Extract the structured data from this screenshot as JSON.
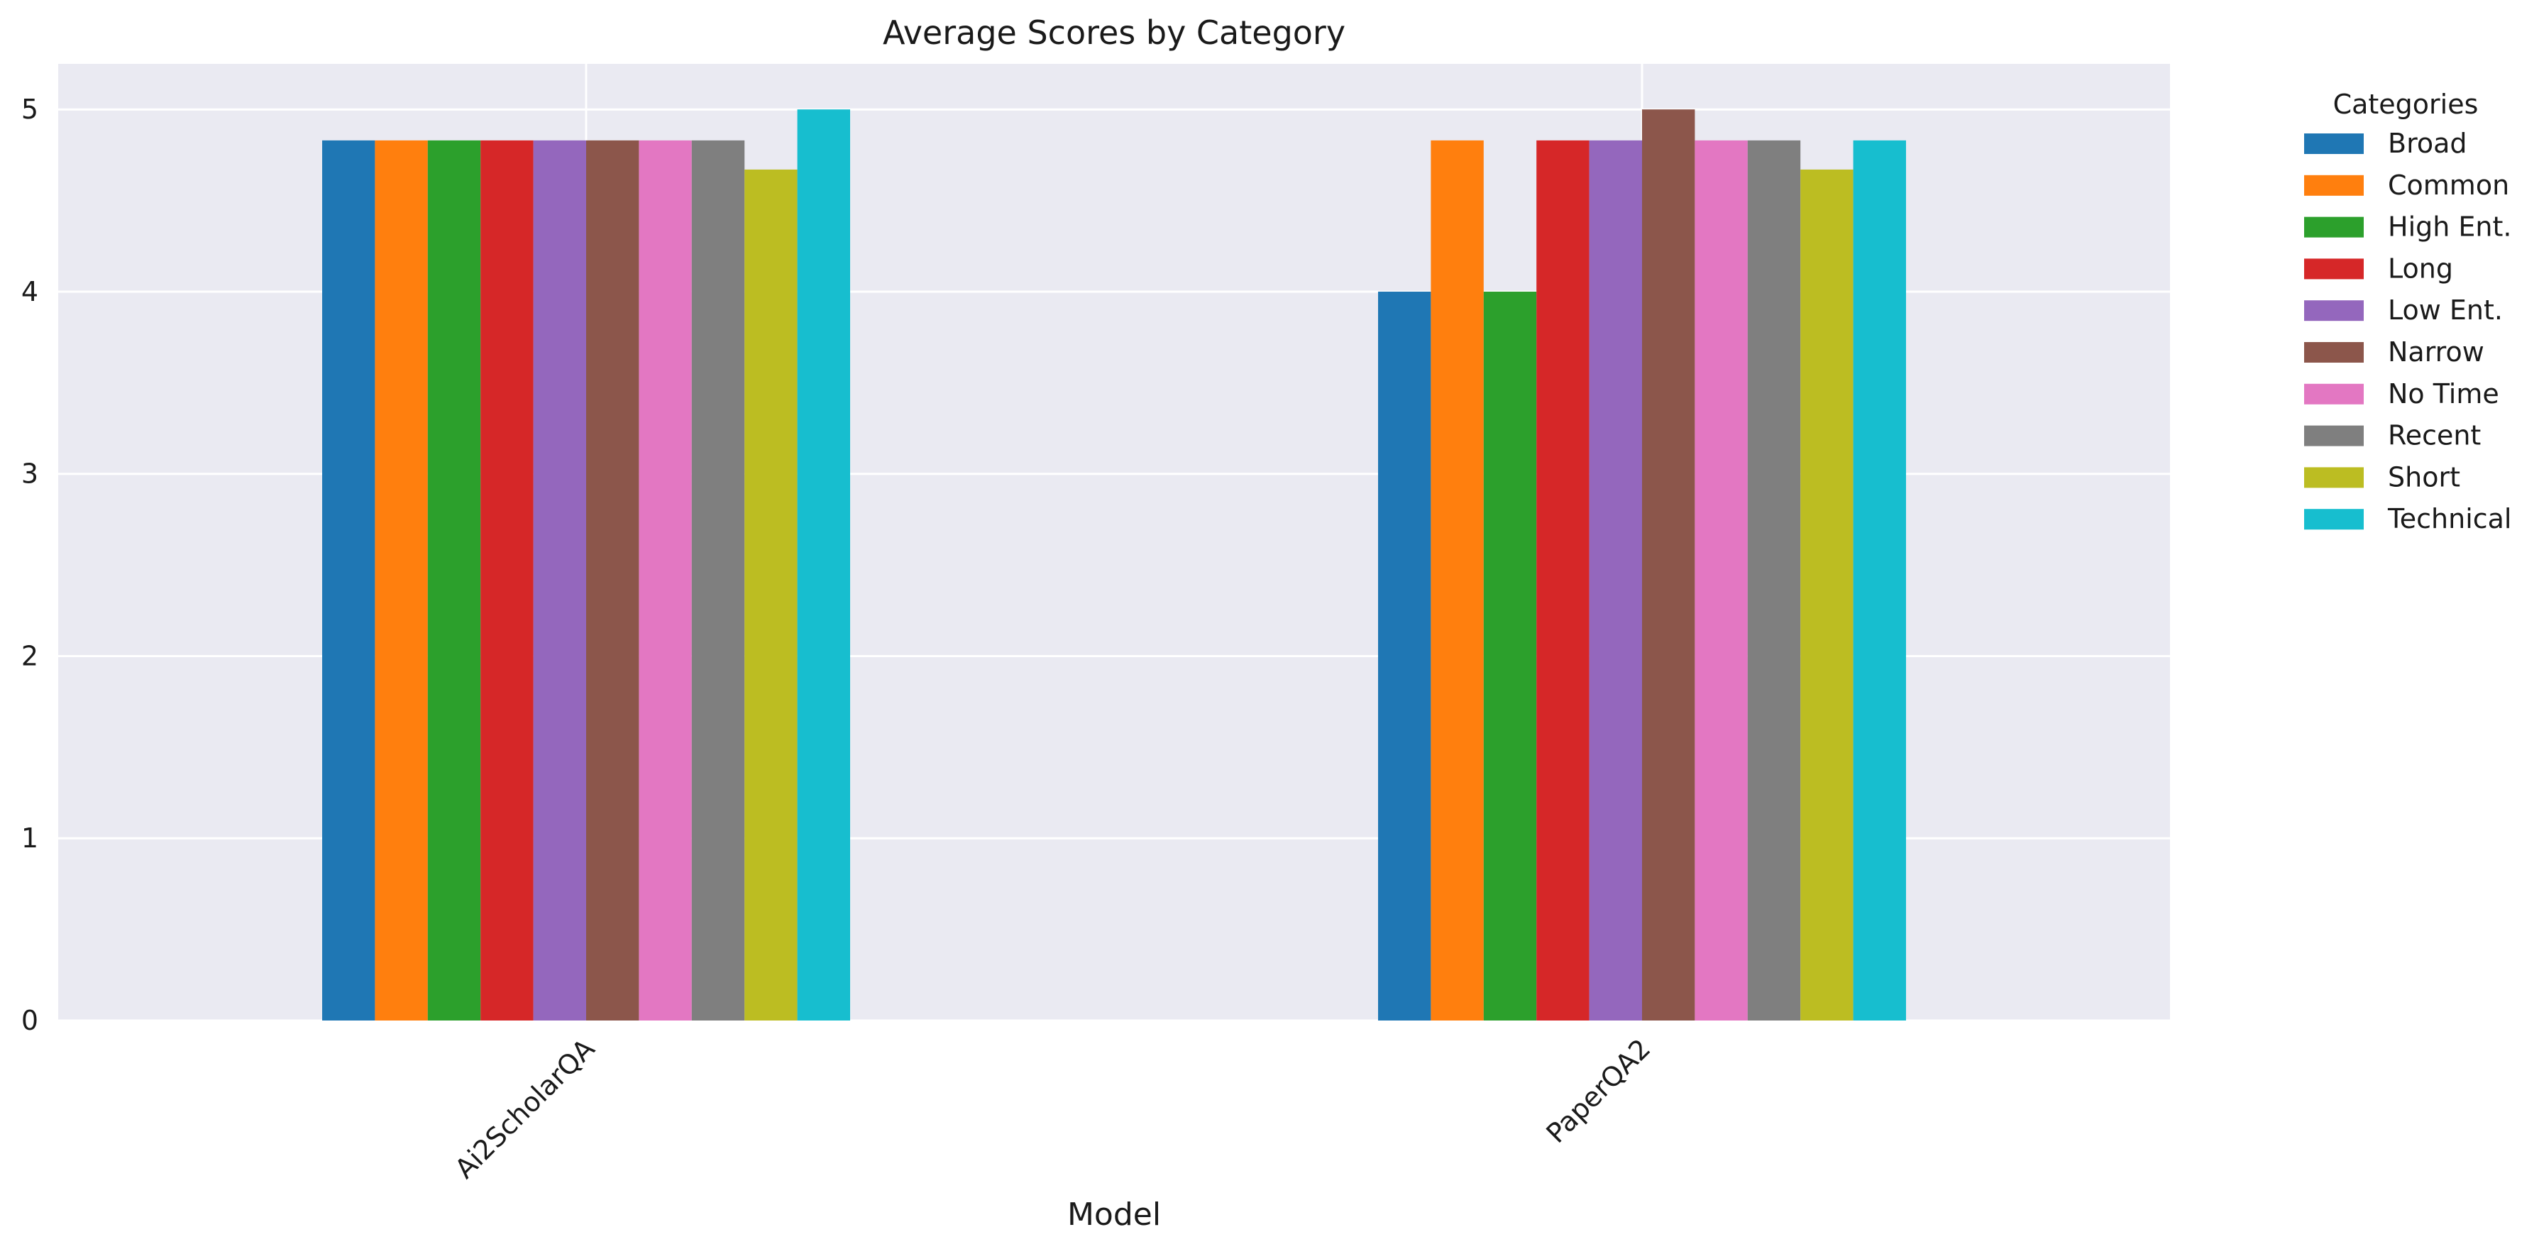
{
  "chart_data": {
    "type": "bar",
    "title": "Average Scores by Category",
    "xlabel": "Model",
    "ylabel": "",
    "categories": [
      "Ai2ScholarQA",
      "PaperQA2"
    ],
    "ylim": [
      0,
      5.25
    ],
    "yticks": [
      0,
      1,
      2,
      3,
      4,
      5
    ],
    "grid": true,
    "legend": {
      "title": "Categories",
      "placement": "outside-top-right"
    },
    "series": [
      {
        "name": "Broad",
        "color": "#1f77b4",
        "values": [
          4.83,
          4.0
        ]
      },
      {
        "name": "Common",
        "color": "#ff7f0e",
        "values": [
          4.83,
          4.83
        ]
      },
      {
        "name": "High Ent.",
        "color": "#2ca02c",
        "values": [
          4.83,
          4.0
        ]
      },
      {
        "name": "Long",
        "color": "#d62728",
        "values": [
          4.83,
          4.83
        ]
      },
      {
        "name": "Low Ent.",
        "color": "#9467bd",
        "values": [
          4.83,
          4.83
        ]
      },
      {
        "name": "Narrow",
        "color": "#8c564b",
        "values": [
          4.83,
          5.0
        ]
      },
      {
        "name": "No Time",
        "color": "#e377c2",
        "values": [
          4.83,
          4.83
        ]
      },
      {
        "name": "Recent",
        "color": "#7f7f7f",
        "values": [
          4.83,
          4.83
        ]
      },
      {
        "name": "Short",
        "color": "#bcbd22",
        "values": [
          4.67,
          4.67
        ]
      },
      {
        "name": "Technical",
        "color": "#17becf",
        "values": [
          5.0,
          4.83
        ]
      }
    ]
  }
}
